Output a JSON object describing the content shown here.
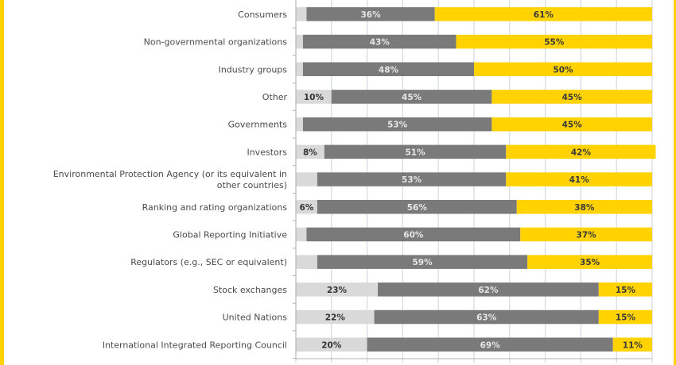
{
  "colors": {
    "frame": "#FFD200",
    "light": "#D9D9D9",
    "dark": "#7A7A7A",
    "accent": "#FFD200",
    "grid": "#D5D9E3",
    "axis": "#B0B0B0",
    "label_on_light": "#333333",
    "label_on_dark": "#E6E6E6",
    "label_on_accent": "#3A3A3A"
  },
  "chart_data": {
    "type": "bar",
    "orientation": "horizontal",
    "stacked": true,
    "title": "",
    "xlabel": "",
    "ylabel": "",
    "xlim": [
      0,
      100
    ],
    "grid": true,
    "grid_step": 10,
    "legend": null,
    "categories": [
      "Consumers",
      "Non-governmental organizations",
      "Industry groups",
      "Other",
      "Governments",
      "Investors",
      "Environmental Protection Agency (or its equivalent in other countries)",
      "Ranking and rating organizations",
      "Global Reporting Initiative",
      "Regulators (e.g., SEC or equivalent)",
      "Stock exchanges",
      "United Nations",
      "International Integrated Reporting Council"
    ],
    "category_lines": [
      [
        "Consumers"
      ],
      [
        "Non-governmental organizations"
      ],
      [
        "Industry groups"
      ],
      [
        "Other"
      ],
      [
        "Governments"
      ],
      [
        "Investors"
      ],
      [
        "Environmental Protection Agency (or its equivalent in",
        "other countries)"
      ],
      [
        "Ranking and rating organizations"
      ],
      [
        "Global Reporting Initiative"
      ],
      [
        "Regulators (e.g., SEC or equivalent)"
      ],
      [
        "Stock exchanges"
      ],
      [
        "United Nations"
      ],
      [
        "International Integrated Reporting Council"
      ]
    ],
    "series": [
      {
        "name": "series-light",
        "color_key": "light",
        "values": [
          3,
          2,
          2,
          10,
          2,
          8,
          6,
          6,
          3,
          6,
          23,
          22,
          20
        ],
        "labels": [
          "",
          "",
          "",
          "10%",
          "",
          "8%",
          "",
          "6%",
          "",
          "",
          "23%",
          "22%",
          "20%"
        ]
      },
      {
        "name": "series-dark",
        "color_key": "dark",
        "values": [
          36,
          43,
          48,
          45,
          53,
          51,
          53,
          56,
          60,
          59,
          62,
          63,
          69
        ],
        "labels": [
          "36%",
          "43%",
          "48%",
          "45%",
          "53%",
          "51%",
          "53%",
          "56%",
          "60%",
          "59%",
          "62%",
          "63%",
          "69%"
        ]
      },
      {
        "name": "series-yellow",
        "color_key": "accent",
        "values": [
          61,
          55,
          50,
          45,
          45,
          42,
          41,
          38,
          37,
          35,
          15,
          15,
          11
        ],
        "labels": [
          "61%",
          "55%",
          "50%",
          "45%",
          "45%",
          "42%",
          "41%",
          "38%",
          "37%",
          "35%",
          "15%",
          "15%",
          "11%"
        ]
      }
    ]
  }
}
